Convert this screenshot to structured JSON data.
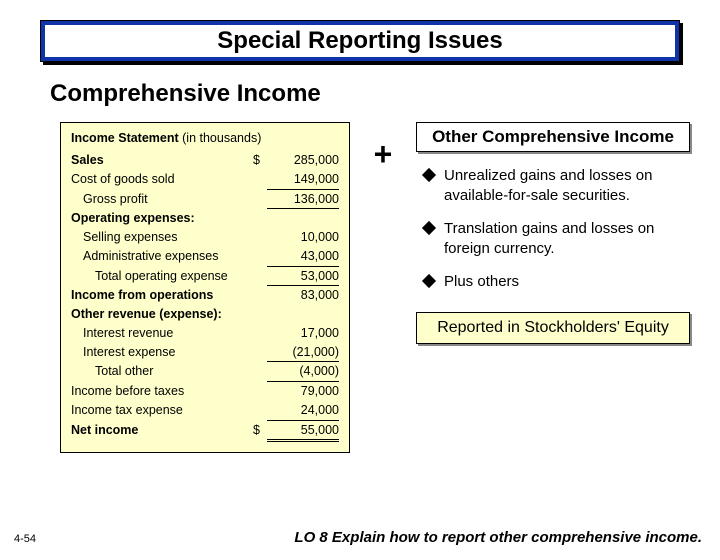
{
  "title": "Special Reporting Issues",
  "subtitle": "Comprehensive Income",
  "statement": {
    "heading_bold": "Income Statement",
    "heading_rest": " (in thousands)",
    "rows": [
      {
        "label": "Sales",
        "bold": true,
        "indent": 0,
        "cur": "$",
        "val": "285,000",
        "ul": false
      },
      {
        "label": "Cost of goods sold",
        "bold": false,
        "indent": 0,
        "cur": "",
        "val": "149,000",
        "ul": true
      },
      {
        "label": "Gross profit",
        "bold": false,
        "indent": 1,
        "cur": "",
        "val": "136,000",
        "ul": true
      },
      {
        "label": "Operating expenses:",
        "bold": true,
        "indent": 0,
        "cur": "",
        "val": "",
        "ul": false
      },
      {
        "label": "Selling expenses",
        "bold": false,
        "indent": 1,
        "cur": "",
        "val": "10,000",
        "ul": false
      },
      {
        "label": "Administrative expenses",
        "bold": false,
        "indent": 1,
        "cur": "",
        "val": "43,000",
        "ul": true
      },
      {
        "label": "Total operating expense",
        "bold": false,
        "indent": 2,
        "cur": "",
        "val": "53,000",
        "ul": true
      },
      {
        "label": "Income from operations",
        "bold": true,
        "indent": 0,
        "cur": "",
        "val": "83,000",
        "ul": false
      },
      {
        "label": "Other revenue (expense):",
        "bold": true,
        "indent": 0,
        "cur": "",
        "val": "",
        "ul": false
      },
      {
        "label": "Interest revenue",
        "bold": false,
        "indent": 1,
        "cur": "",
        "val": "17,000",
        "ul": false
      },
      {
        "label": "Interest expense",
        "bold": false,
        "indent": 1,
        "cur": "",
        "val": "(21,000)",
        "ul": true
      },
      {
        "label": "Total other",
        "bold": false,
        "indent": 2,
        "cur": "",
        "val": "(4,000)",
        "ul": true
      },
      {
        "label": "Income before taxes",
        "bold": false,
        "indent": 0,
        "cur": "",
        "val": "79,000",
        "ul": false
      },
      {
        "label": "Income tax expense",
        "bold": false,
        "indent": 0,
        "cur": "",
        "val": "24,000",
        "ul": true
      },
      {
        "label": "Net income",
        "bold": true,
        "indent": 0,
        "cur": "$",
        "val": "55,000",
        "ul": false,
        "dbl": true
      }
    ]
  },
  "plus": "+",
  "oci_header": "Other Comprehensive Income",
  "bullets": [
    "Unrealized gains and losses on available-for-sale securities.",
    "Translation gains and losses on foreign currency.",
    "Plus others"
  ],
  "equity_note": "Reported in Stockholders' Equity",
  "slide_num": "4-54",
  "lo": "LO 8  Explain how to report other comprehensive income."
}
